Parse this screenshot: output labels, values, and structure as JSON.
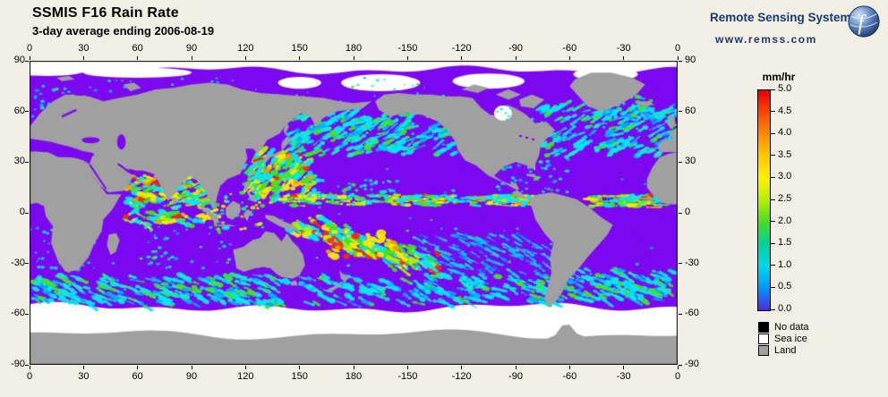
{
  "header": {
    "title": "SSMIS F16 Rain Rate",
    "subtitle": "3-day average ending 2006-08-19"
  },
  "branding": {
    "name": "Remote Sensing Systems",
    "url": "www.remss.com"
  },
  "map": {
    "lon_ticks": [
      "0",
      "30",
      "60",
      "90",
      "120",
      "150",
      "180",
      "-150",
      "-120",
      "-90",
      "-60",
      "-30",
      "0"
    ],
    "lat_ticks": [
      "90",
      "60",
      "30",
      "0",
      "-30",
      "-60",
      "-90"
    ],
    "colors": {
      "background": "#f1eee4",
      "ocean_zero_rain": "#7c08f2",
      "land": "#a0a0a0",
      "no_data_ice": "#ffffff"
    }
  },
  "colorbar": {
    "unit": "mm/hr",
    "min": 0.0,
    "max": 5.0,
    "tick_labels": [
      "5.0",
      "4.5",
      "4.0",
      "3.5",
      "3.0",
      "2.5",
      "2.0",
      "1.5",
      "1.0",
      "0.5",
      "0.0"
    ],
    "gradient_top_to_bottom": [
      "#e60000",
      "#ff4600",
      "#ff8c00",
      "#ffc800",
      "#fff000",
      "#b4f000",
      "#46dc28",
      "#00d29b",
      "#00d8e8",
      "#0096ff",
      "#5028e8"
    ]
  },
  "legend": {
    "items": [
      {
        "label": "No data",
        "color": "#000000"
      },
      {
        "label": "Sea ice",
        "color": "#ffffff"
      },
      {
        "label": "Land",
        "color": "#a0a0a0"
      }
    ]
  },
  "chart_data": {
    "type": "heatmap",
    "title": "SSMIS F16 Rain Rate",
    "subtitle": "3-day average ending 2006-08-19",
    "variable_units": "mm/hr",
    "value_range": [
      0,
      5
    ],
    "colorbar_ticks": [
      5.0,
      4.5,
      4.0,
      3.5,
      3.0,
      2.5,
      2.0,
      1.5,
      1.0,
      0.5,
      0.0
    ],
    "lon_ticks_deg": [
      0,
      30,
      60,
      90,
      120,
      150,
      180,
      -150,
      -120,
      -90,
      -60,
      -30,
      0
    ],
    "lat_ticks_deg": [
      90,
      60,
      30,
      0,
      -30,
      -60,
      -90
    ],
    "mask_legend": [
      "No data",
      "Sea ice",
      "Land"
    ]
  }
}
